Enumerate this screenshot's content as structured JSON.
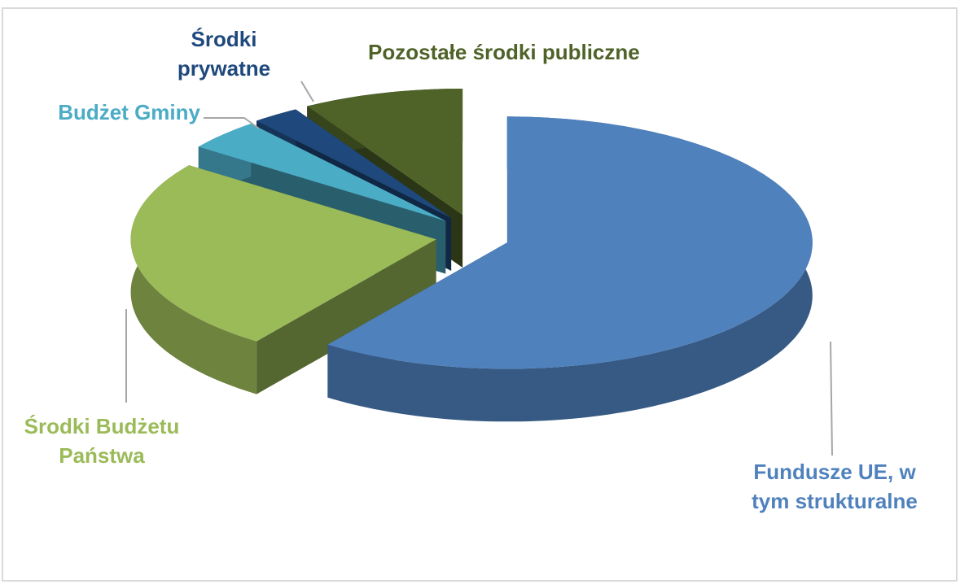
{
  "chart_data": {
    "type": "pie",
    "categories": [
      "Fundusze UE, w tym strukturalne",
      "Środki Budżetu Państwa",
      "Budżet Gminy",
      "Środki prywatne",
      "Pozostałe środki publiczne"
    ],
    "values": [
      60,
      25,
      4,
      2.5,
      8.5
    ],
    "colors": [
      "#4f81bd",
      "#9bbb59",
      "#4bacc6",
      "#1f497d",
      "#4f6228"
    ],
    "legend": false
  }
}
